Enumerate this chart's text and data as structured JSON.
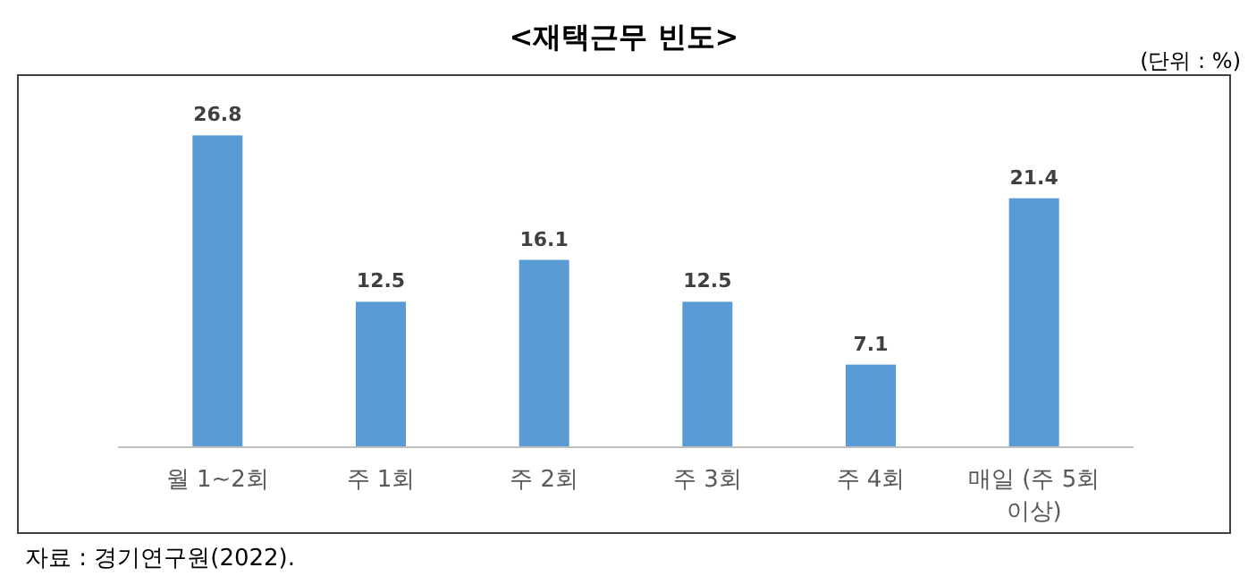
{
  "chart_data": {
    "type": "bar",
    "title": "<재택근무 빈도>",
    "categories": [
      "월 1~2회",
      "주 1회",
      "주 2회",
      "주 3회",
      "주 4회",
      "매일 (주 5회 이상)"
    ],
    "values": [
      26.8,
      12.5,
      16.1,
      12.5,
      7.1,
      21.4
    ],
    "color": "#5b9bd5",
    "data_labels": true,
    "annotations": [
      "(단위 : %)",
      "자료 : 경기연구원(2022)."
    ]
  }
}
